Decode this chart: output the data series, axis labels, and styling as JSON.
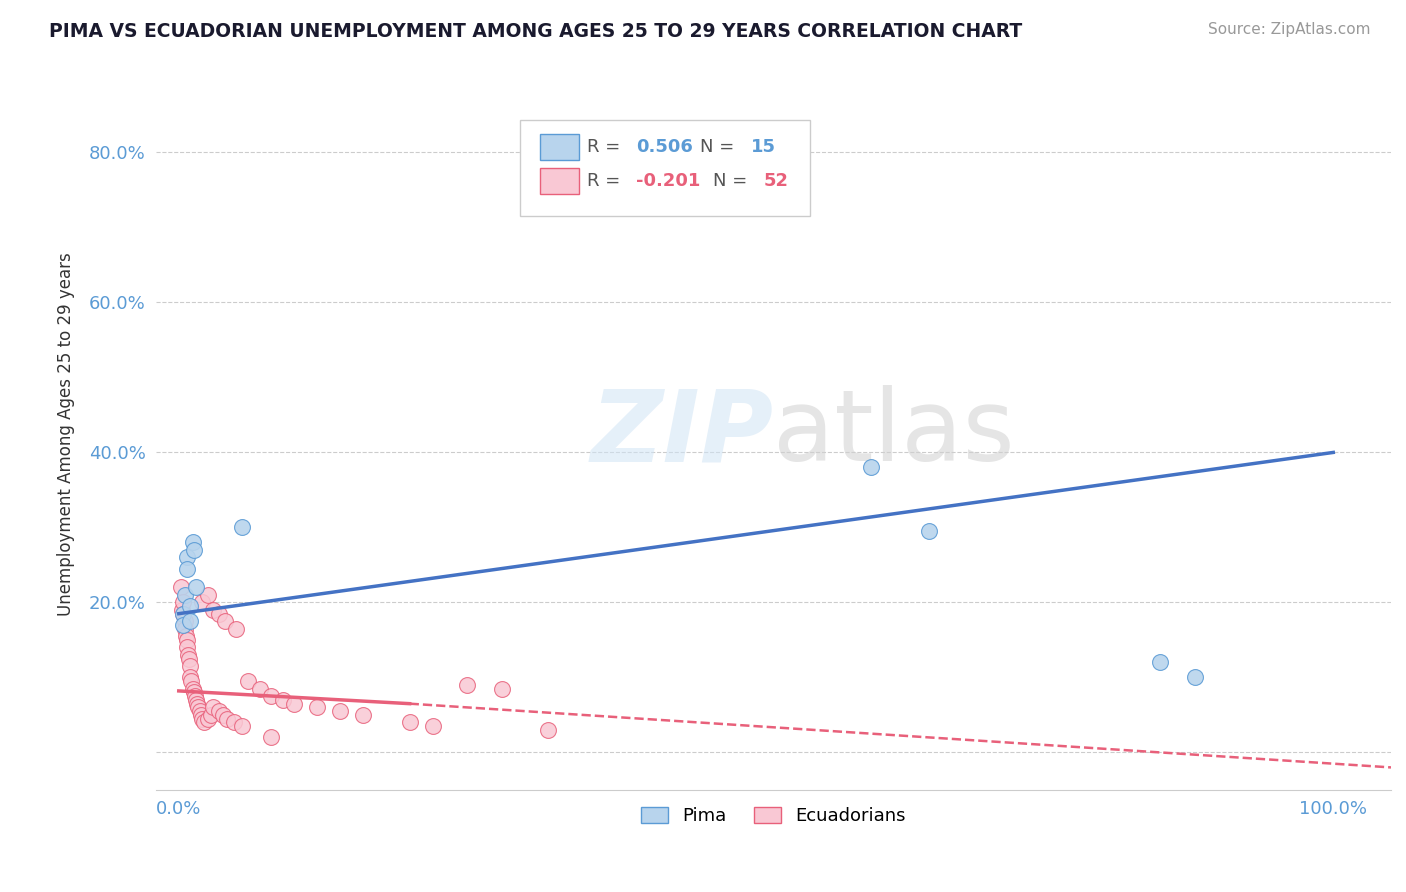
{
  "title": "PIMA VS ECUADORIAN UNEMPLOYMENT AMONG AGES 25 TO 29 YEARS CORRELATION CHART",
  "source": "Source: ZipAtlas.com",
  "ylabel": "Unemployment Among Ages 25 to 29 years",
  "watermark": "ZIPatlas",
  "pima": {
    "label": "Pima",
    "color": "#b8d4ed",
    "color_solid": "#5b9bd5",
    "R": 0.506,
    "N": 15,
    "x": [
      0.004,
      0.004,
      0.005,
      0.007,
      0.007,
      0.01,
      0.01,
      0.012,
      0.013,
      0.015,
      0.055,
      0.6,
      0.65,
      0.85,
      0.88
    ],
    "y": [
      0.185,
      0.17,
      0.21,
      0.26,
      0.245,
      0.195,
      0.175,
      0.28,
      0.27,
      0.22,
      0.3,
      0.38,
      0.295,
      0.12,
      0.1
    ]
  },
  "ecuadorians": {
    "label": "Ecuadorians",
    "color": "#f9c8d4",
    "color_solid": "#e8607a",
    "R": -0.201,
    "N": 52,
    "x": [
      0.002,
      0.003,
      0.004,
      0.004,
      0.005,
      0.005,
      0.006,
      0.007,
      0.007,
      0.008,
      0.009,
      0.01,
      0.01,
      0.011,
      0.012,
      0.013,
      0.014,
      0.015,
      0.016,
      0.017,
      0.018,
      0.019,
      0.02,
      0.022,
      0.025,
      0.028,
      0.03,
      0.035,
      0.038,
      0.042,
      0.048,
      0.055,
      0.06,
      0.07,
      0.08,
      0.09,
      0.1,
      0.12,
      0.14,
      0.16,
      0.2,
      0.22,
      0.25,
      0.28,
      0.32,
      0.02,
      0.025,
      0.03,
      0.035,
      0.04,
      0.05,
      0.08
    ],
    "y": [
      0.22,
      0.19,
      0.2,
      0.185,
      0.175,
      0.165,
      0.155,
      0.15,
      0.14,
      0.13,
      0.125,
      0.115,
      0.1,
      0.095,
      0.085,
      0.08,
      0.075,
      0.07,
      0.065,
      0.06,
      0.055,
      0.05,
      0.045,
      0.04,
      0.045,
      0.05,
      0.06,
      0.055,
      0.05,
      0.045,
      0.04,
      0.035,
      0.095,
      0.085,
      0.075,
      0.07,
      0.065,
      0.06,
      0.055,
      0.05,
      0.04,
      0.035,
      0.09,
      0.085,
      0.03,
      0.2,
      0.21,
      0.19,
      0.185,
      0.175,
      0.165,
      0.02
    ]
  },
  "pima_line": {
    "x0": 0.0,
    "x1": 1.0,
    "y0": 0.185,
    "y1": 0.4
  },
  "ecu_line_solid": {
    "x0": 0.0,
    "x1": 0.2,
    "y0": 0.082,
    "y1": 0.065
  },
  "ecu_line_dash": {
    "x0": 0.2,
    "x1": 1.05,
    "y0": 0.065,
    "y1": -0.02
  },
  "xlim": [
    -0.02,
    1.05
  ],
  "ylim": [
    -0.05,
    0.9
  ],
  "xticks": [
    0.0,
    1.0
  ],
  "xtick_labels": [
    "0.0%",
    "100.0%"
  ],
  "yticks": [
    0.0,
    0.2,
    0.4,
    0.6,
    0.8
  ],
  "ytick_labels": [
    "",
    "20.0%",
    "40.0%",
    "60.0%",
    "80.0%"
  ],
  "grid_color": "#cccccc",
  "bg_color": "#ffffff",
  "legend_R_color_pima": "#5b9bd5",
  "legend_R_color_ecu": "#e8607a",
  "pima_line_color": "#4472c4",
  "ecu_line_color": "#e8607a",
  "marker_size": 130
}
